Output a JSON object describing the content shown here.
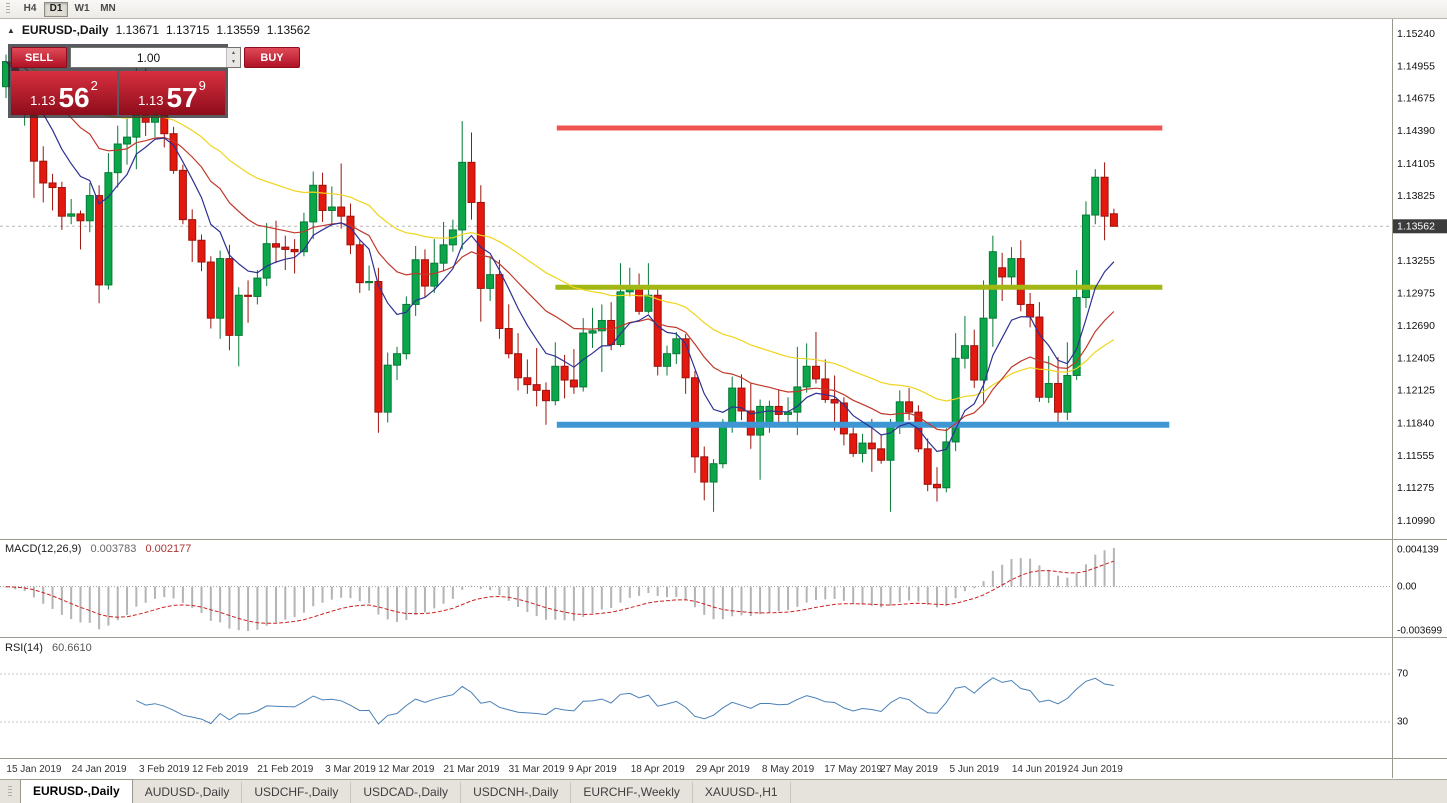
{
  "toolbar": {
    "periods": [
      {
        "label": "H4",
        "active": false
      },
      {
        "label": "D1",
        "active": true
      },
      {
        "label": "W1",
        "active": false
      },
      {
        "label": "MN",
        "active": false
      }
    ]
  },
  "chart_header": {
    "symbol": "EURUSD-,Daily",
    "open": "1.13671",
    "high": "1.13715",
    "low": "1.13559",
    "close": "1.13562"
  },
  "trade_panel": {
    "sell_label": "SELL",
    "buy_label": "BUY",
    "volume": "1.00",
    "sell_price": {
      "base": "1.13",
      "pips": "56",
      "sup": "2"
    },
    "buy_price": {
      "base": "1.13",
      "pips": "57",
      "sup": "9"
    }
  },
  "price_scale": {
    "labels": [
      "1.15240",
      "1.14955",
      "1.14675",
      "1.14390",
      "1.14105",
      "1.13825",
      "1.13540",
      "1.13255",
      "1.12975",
      "1.12690",
      "1.12405",
      "1.12125",
      "1.11840",
      "1.11555",
      "1.11275",
      "1.10990"
    ],
    "current": "1.13562"
  },
  "date_axis": [
    {
      "text": "15 Jan 2019",
      "i": 3
    },
    {
      "text": "24 Jan 2019",
      "i": 10
    },
    {
      "text": "3 Feb 2019",
      "i": 17
    },
    {
      "text": "12 Feb 2019",
      "i": 23
    },
    {
      "text": "21 Feb 2019",
      "i": 30
    },
    {
      "text": "3 Mar 2019",
      "i": 37
    },
    {
      "text": "12 Mar 2019",
      "i": 43
    },
    {
      "text": "21 Mar 2019",
      "i": 50
    },
    {
      "text": "31 Mar 2019",
      "i": 57
    },
    {
      "text": "9 Apr 2019",
      "i": 63
    },
    {
      "text": "18 Apr 2019",
      "i": 70
    },
    {
      "text": "29 Apr 2019",
      "i": 77
    },
    {
      "text": "8 May 2019",
      "i": 84
    },
    {
      "text": "17 May 2019",
      "i": 91
    },
    {
      "text": "27 May 2019",
      "i": 97
    },
    {
      "text": "5 Jun 2019",
      "i": 104
    },
    {
      "text": "14 Jun 2019",
      "i": 111
    },
    {
      "text": "24 Jun 2019",
      "i": 117
    }
  ],
  "indicators": {
    "macd": {
      "label": "MACD(12,26,9)",
      "value1": "0.003783",
      "value2": "0.002177",
      "scale_top": "0.004139",
      "scale_mid": "0.00",
      "scale_bottom": "-0.003699",
      "fast": 12,
      "slow": 26,
      "signal": 9
    },
    "rsi": {
      "label": "RSI(14)",
      "value": "60.6610",
      "level_top": "70",
      "level_bottom": "30",
      "period": 14
    }
  },
  "tabs": [
    {
      "label": "EURUSD-,Daily",
      "active": true
    },
    {
      "label": "AUDUSD-,Daily",
      "active": false
    },
    {
      "label": "USDCHF-,Daily",
      "active": false
    },
    {
      "label": "USDCAD-,Daily",
      "active": false
    },
    {
      "label": "USDCNH-,Daily",
      "active": false
    },
    {
      "label": "EURCHF-,Weekly",
      "active": false
    },
    {
      "label": "XAUUSD-,H1",
      "active": false
    }
  ],
  "colors": {
    "bull": "#0aa649",
    "bull_stroke": "#067a36",
    "bear": "#e3180f",
    "bear_stroke": "#9c130b",
    "ma_slow": "#efd51d",
    "ma_mid": "#c0392b",
    "ma_fast": "#2e3192",
    "hline_red": "#ef5350",
    "hline_olive": "#a2b713",
    "hline_blue": "#3e97d3",
    "macd_hist": "#b4b4b4",
    "macd_signal": "#cc2222",
    "rsi_line": "#4a80b7",
    "bid_tag_bg": "#3c3c3c",
    "grid": "#9b988f"
  },
  "chart_data": {
    "type": "candlestick",
    "title": "EURUSD-,Daily",
    "ylim": [
      1.1099,
      1.1524
    ],
    "bid": 1.13562,
    "hlines": [
      {
        "price": 1.1442,
        "color_key": "hline_red",
        "width": 5,
        "x1": 0.4,
        "x2": 0.835
      },
      {
        "price": 1.1303,
        "color_key": "hline_olive",
        "width": 5,
        "x1": 0.399,
        "x2": 0.835
      },
      {
        "price": 1.1183,
        "color_key": "hline_blue",
        "width": 6,
        "x1": 0.4,
        "x2": 0.84
      }
    ],
    "moving_averages": [
      {
        "type": "ema",
        "period": 40,
        "color_key": "ma_slow"
      },
      {
        "type": "ema",
        "period": 20,
        "color_key": "ma_mid"
      },
      {
        "type": "ema",
        "period": 8,
        "color_key": "ma_fast"
      }
    ],
    "ohlc": [
      [
        1.1478,
        1.1506,
        1.1468,
        1.15
      ],
      [
        1.15,
        1.151,
        1.1458,
        1.1467
      ],
      [
        1.1462,
        1.1482,
        1.1444,
        1.1473
      ],
      [
        1.1473,
        1.149,
        1.1381,
        1.1413
      ],
      [
        1.1413,
        1.1426,
        1.1377,
        1.1394
      ],
      [
        1.1394,
        1.1402,
        1.137,
        1.139
      ],
      [
        1.139,
        1.1395,
        1.1353,
        1.1365
      ],
      [
        1.1365,
        1.138,
        1.1358,
        1.1367
      ],
      [
        1.1367,
        1.137,
        1.1336,
        1.1361
      ],
      [
        1.1361,
        1.1394,
        1.1351,
        1.1383
      ],
      [
        1.1383,
        1.1392,
        1.1289,
        1.1305
      ],
      [
        1.1305,
        1.142,
        1.1301,
        1.1403
      ],
      [
        1.1403,
        1.1444,
        1.139,
        1.1428
      ],
      [
        1.1428,
        1.145,
        1.141,
        1.1434
      ],
      [
        1.1434,
        1.1502,
        1.1406,
        1.1481
      ],
      [
        1.1481,
        1.1503,
        1.1435,
        1.1447
      ],
      [
        1.1447,
        1.149,
        1.1434,
        1.1456
      ],
      [
        1.1456,
        1.146,
        1.1425,
        1.1437
      ],
      [
        1.1437,
        1.1443,
        1.1402,
        1.1405
      ],
      [
        1.1405,
        1.141,
        1.1358,
        1.1362
      ],
      [
        1.1362,
        1.1371,
        1.1325,
        1.1344
      ],
      [
        1.1344,
        1.1349,
        1.1317,
        1.1325
      ],
      [
        1.1325,
        1.133,
        1.1267,
        1.1276
      ],
      [
        1.1276,
        1.1335,
        1.1258,
        1.1328
      ],
      [
        1.1328,
        1.134,
        1.1248,
        1.1261
      ],
      [
        1.1261,
        1.1303,
        1.1234,
        1.1296
      ],
      [
        1.1296,
        1.1309,
        1.1272,
        1.1295
      ],
      [
        1.1295,
        1.1318,
        1.1288,
        1.1311
      ],
      [
        1.1311,
        1.1359,
        1.1304,
        1.1341
      ],
      [
        1.1341,
        1.1361,
        1.1324,
        1.1338
      ],
      [
        1.1338,
        1.1348,
        1.1318,
        1.1336
      ],
      [
        1.1336,
        1.1345,
        1.1315,
        1.1334
      ],
      [
        1.1334,
        1.1368,
        1.133,
        1.136
      ],
      [
        1.136,
        1.1404,
        1.1345,
        1.1392
      ],
      [
        1.1392,
        1.1403,
        1.136,
        1.137
      ],
      [
        1.137,
        1.1391,
        1.1358,
        1.1373
      ],
      [
        1.1373,
        1.1411,
        1.1354,
        1.1365
      ],
      [
        1.1365,
        1.1376,
        1.1332,
        1.134
      ],
      [
        1.134,
        1.1344,
        1.1298,
        1.1307
      ],
      [
        1.1307,
        1.1322,
        1.13,
        1.1308
      ],
      [
        1.1308,
        1.132,
        1.1176,
        1.1194
      ],
      [
        1.1194,
        1.1246,
        1.1185,
        1.1235
      ],
      [
        1.1235,
        1.1251,
        1.1222,
        1.1245
      ],
      [
        1.1245,
        1.1295,
        1.124,
        1.1288
      ],
      [
        1.1288,
        1.1339,
        1.1278,
        1.1327
      ],
      [
        1.1327,
        1.1336,
        1.1294,
        1.1304
      ],
      [
        1.1304,
        1.1345,
        1.1298,
        1.1324
      ],
      [
        1.1324,
        1.136,
        1.1317,
        1.134
      ],
      [
        1.134,
        1.1362,
        1.1334,
        1.1353
      ],
      [
        1.1353,
        1.1448,
        1.1336,
        1.1412
      ],
      [
        1.1412,
        1.1438,
        1.1362,
        1.1377
      ],
      [
        1.1377,
        1.1392,
        1.1273,
        1.1302
      ],
      [
        1.1302,
        1.133,
        1.1291,
        1.1314
      ],
      [
        1.1314,
        1.1327,
        1.1258,
        1.1267
      ],
      [
        1.1267,
        1.1288,
        1.1241,
        1.1245
      ],
      [
        1.1245,
        1.1263,
        1.1213,
        1.1224
      ],
      [
        1.1224,
        1.124,
        1.121,
        1.1218
      ],
      [
        1.1218,
        1.125,
        1.1199,
        1.1213
      ],
      [
        1.1213,
        1.122,
        1.1183,
        1.1204
      ],
      [
        1.1204,
        1.1255,
        1.12,
        1.1234
      ],
      [
        1.1234,
        1.1244,
        1.1206,
        1.1222
      ],
      [
        1.1222,
        1.1249,
        1.121,
        1.1216
      ],
      [
        1.1216,
        1.1276,
        1.1212,
        1.1263
      ],
      [
        1.1263,
        1.1285,
        1.125,
        1.1265
      ],
      [
        1.1265,
        1.1288,
        1.1229,
        1.1274
      ],
      [
        1.1274,
        1.129,
        1.1248,
        1.1253
      ],
      [
        1.1253,
        1.1324,
        1.1251,
        1.1299
      ],
      [
        1.1299,
        1.132,
        1.1295,
        1.1304
      ],
      [
        1.1304,
        1.1315,
        1.1279,
        1.1282
      ],
      [
        1.1282,
        1.1324,
        1.128,
        1.1296
      ],
      [
        1.1296,
        1.1305,
        1.1226,
        1.1234
      ],
      [
        1.1234,
        1.1252,
        1.1226,
        1.1245
      ],
      [
        1.1245,
        1.1264,
        1.1236,
        1.1258
      ],
      [
        1.1258,
        1.1262,
        1.121,
        1.1224
      ],
      [
        1.1224,
        1.123,
        1.1141,
        1.1155
      ],
      [
        1.1155,
        1.1164,
        1.1117,
        1.1133
      ],
      [
        1.1133,
        1.1153,
        1.1107,
        1.1149
      ],
      [
        1.1149,
        1.1188,
        1.1145,
        1.1185
      ],
      [
        1.1185,
        1.1225,
        1.1176,
        1.1215
      ],
      [
        1.1215,
        1.1227,
        1.1187,
        1.1195
      ],
      [
        1.1195,
        1.1219,
        1.1162,
        1.1174
      ],
      [
        1.1174,
        1.1205,
        1.1135,
        1.1199
      ],
      [
        1.1185,
        1.1204,
        1.1176,
        1.1199
      ],
      [
        1.1199,
        1.1214,
        1.1182,
        1.1192
      ],
      [
        1.1192,
        1.1207,
        1.1182,
        1.1194
      ],
      [
        1.1194,
        1.1251,
        1.1174,
        1.1216
      ],
      [
        1.1216,
        1.1254,
        1.1211,
        1.1234
      ],
      [
        1.1234,
        1.1264,
        1.1219,
        1.1223
      ],
      [
        1.1223,
        1.124,
        1.1202,
        1.1205
      ],
      [
        1.1205,
        1.1226,
        1.1178,
        1.1202
      ],
      [
        1.1202,
        1.1207,
        1.1165,
        1.1175
      ],
      [
        1.1175,
        1.1184,
        1.1155,
        1.1158
      ],
      [
        1.1158,
        1.1175,
        1.115,
        1.1167
      ],
      [
        1.1167,
        1.1188,
        1.1142,
        1.1162
      ],
      [
        1.1162,
        1.1174,
        1.1149,
        1.1152
      ],
      [
        1.1152,
        1.1188,
        1.1107,
        1.1182
      ],
      [
        1.1182,
        1.1213,
        1.1175,
        1.1203
      ],
      [
        1.1203,
        1.1215,
        1.1187,
        1.1194
      ],
      [
        1.1194,
        1.12,
        1.1159,
        1.1162
      ],
      [
        1.1162,
        1.1171,
        1.1125,
        1.1131
      ],
      [
        1.1131,
        1.1146,
        1.1116,
        1.1128
      ],
      [
        1.1128,
        1.118,
        1.1124,
        1.1168
      ],
      [
        1.1168,
        1.1263,
        1.116,
        1.1241
      ],
      [
        1.1241,
        1.1278,
        1.1232,
        1.1252
      ],
      [
        1.1252,
        1.1266,
        1.1215,
        1.1222
      ],
      [
        1.1222,
        1.1309,
        1.1201,
        1.1276
      ],
      [
        1.1276,
        1.1348,
        1.1251,
        1.1334
      ],
      [
        1.132,
        1.1333,
        1.1291,
        1.1312
      ],
      [
        1.1312,
        1.1338,
        1.1301,
        1.1328
      ],
      [
        1.1328,
        1.1344,
        1.1282,
        1.1288
      ],
      [
        1.1288,
        1.1298,
        1.1268,
        1.1277
      ],
      [
        1.1277,
        1.129,
        1.1203,
        1.1207
      ],
      [
        1.1207,
        1.1243,
        1.1202,
        1.1219
      ],
      [
        1.1219,
        1.1242,
        1.1181,
        1.1194
      ],
      [
        1.1194,
        1.1255,
        1.1187,
        1.1226
      ],
      [
        1.1226,
        1.1318,
        1.1222,
        1.1294
      ],
      [
        1.1294,
        1.1378,
        1.1285,
        1.1366
      ],
      [
        1.1366,
        1.1406,
        1.1358,
        1.1399
      ],
      [
        1.1399,
        1.1412,
        1.1344,
        1.1365
      ],
      [
        1.13671,
        1.13715,
        1.13559,
        1.13562
      ]
    ]
  }
}
